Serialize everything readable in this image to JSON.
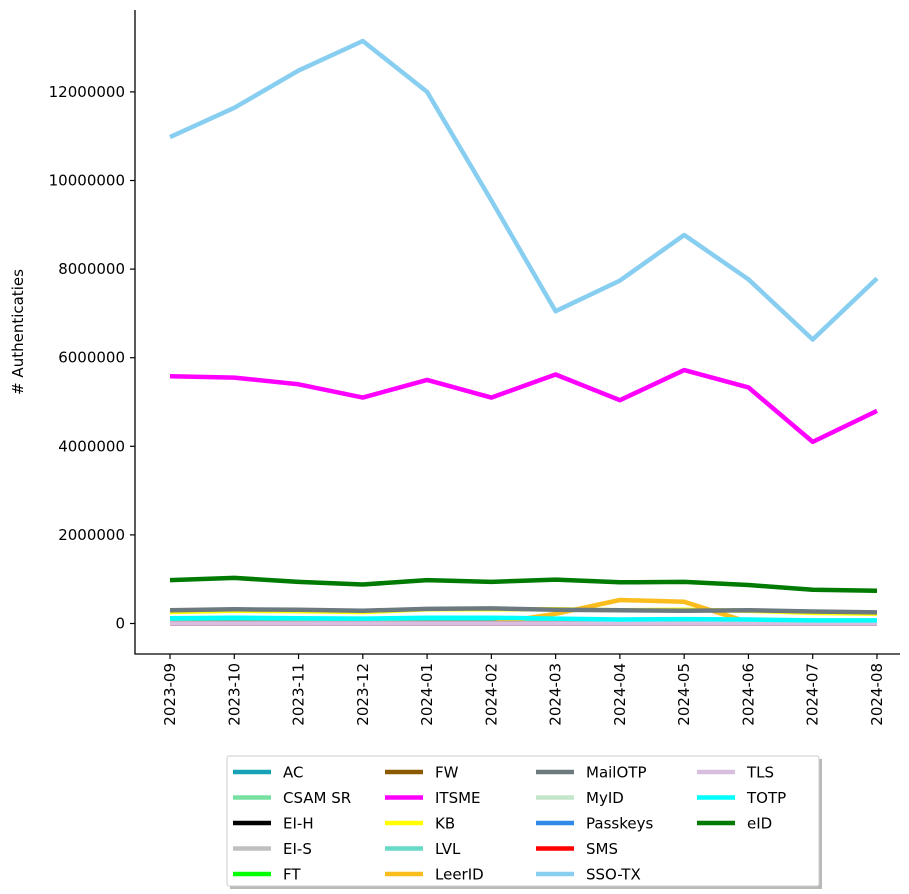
{
  "chart_data": {
    "type": "line",
    "title": "",
    "xlabel": "",
    "ylabel": "# Authenticaties",
    "ylim": [
      -650000,
      13900000
    ],
    "yticks": [
      0,
      2000000,
      4000000,
      6000000,
      8000000,
      10000000,
      12000000
    ],
    "ytick_labels": [
      "0",
      "2000000",
      "4000000",
      "6000000",
      "8000000",
      "10000000",
      "12000000"
    ],
    "categories": [
      "2023-09",
      "2023-10",
      "2023-11",
      "2023-12",
      "2024-01",
      "2024-02",
      "2024-03",
      "2024-04",
      "2024-05",
      "2024-06",
      "2024-07",
      "2024-08"
    ],
    "grid": false,
    "legend_position": "bottom",
    "series": [
      {
        "name": "AC",
        "color": "#17a2b8",
        "values": [
          30000,
          30000,
          30000,
          30000,
          30000,
          30000,
          30000,
          30000,
          30000,
          30000,
          30000,
          30000
        ]
      },
      {
        "name": "CSAM SR",
        "color": "#77e0a0",
        "values": [
          20000,
          20000,
          20000,
          20000,
          20000,
          20000,
          20000,
          20000,
          20000,
          20000,
          20000,
          20000
        ]
      },
      {
        "name": "EI-H",
        "color": "#000000",
        "values": [
          5000,
          5000,
          5000,
          5000,
          5000,
          5000,
          5000,
          5000,
          5000,
          5000,
          5000,
          5000
        ]
      },
      {
        "name": "EI-S",
        "color": "#c0c0c0",
        "values": [
          3000,
          3000,
          3000,
          3000,
          3000,
          3000,
          3000,
          3000,
          3000,
          3000,
          3000,
          3000
        ]
      },
      {
        "name": "FT",
        "color": "#00ff00",
        "values": [
          2000,
          2000,
          2000,
          2000,
          2000,
          2000,
          2000,
          2000,
          2000,
          2000,
          2000,
          2000
        ]
      },
      {
        "name": "FW",
        "color": "#8b5a00",
        "values": [
          1000,
          1000,
          1000,
          1000,
          1000,
          1000,
          1000,
          1000,
          1000,
          1000,
          1000,
          1000
        ]
      },
      {
        "name": "ITSME",
        "color": "#ff00ff",
        "values": [
          5580000,
          5550000,
          5400000,
          5100000,
          5500000,
          5100000,
          5620000,
          5040000,
          5720000,
          5330000,
          4100000,
          4800000
        ]
      },
      {
        "name": "KB",
        "color": "#ffff00",
        "values": [
          260000,
          290000,
          280000,
          260000,
          320000,
          320000,
          320000,
          300000,
          310000,
          290000,
          240000,
          220000
        ]
      },
      {
        "name": "LVL",
        "color": "#66d9c7",
        "values": [
          10000,
          10000,
          10000,
          10000,
          10000,
          10000,
          10000,
          10000,
          10000,
          10000,
          10000,
          10000
        ]
      },
      {
        "name": "LeerID",
        "color": "#fbbc1e",
        "values": [
          0,
          0,
          0,
          0,
          0,
          0,
          220000,
          530000,
          490000,
          30000,
          0,
          0
        ]
      },
      {
        "name": "MailOTP",
        "color": "#6c7a80",
        "values": [
          300000,
          320000,
          310000,
          290000,
          330000,
          340000,
          310000,
          300000,
          290000,
          300000,
          270000,
          250000
        ]
      },
      {
        "name": "MyID",
        "color": "#c3e6cb",
        "values": [
          0,
          0,
          0,
          0,
          0,
          0,
          0,
          0,
          0,
          0,
          0,
          0
        ]
      },
      {
        "name": "Passkeys",
        "color": "#2e8ae6",
        "values": [
          0,
          0,
          0,
          0,
          0,
          0,
          0,
          0,
          0,
          0,
          0,
          0
        ]
      },
      {
        "name": "SMS",
        "color": "#ff0000",
        "values": [
          0,
          0,
          0,
          0,
          0,
          0,
          0,
          0,
          0,
          0,
          0,
          0
        ]
      },
      {
        "name": "SSO-TX",
        "color": "#87cef0",
        "values": [
          10980000,
          11640000,
          12480000,
          13150000,
          12000000,
          9550000,
          7050000,
          7740000,
          8770000,
          7770000,
          6410000,
          7790000
        ]
      },
      {
        "name": "TLS",
        "color": "#d8bfe0",
        "values": [
          0,
          0,
          0,
          0,
          0,
          0,
          0,
          0,
          0,
          0,
          0,
          0
        ]
      },
      {
        "name": "TOTP",
        "color": "#00ffff",
        "values": [
          120000,
          130000,
          120000,
          110000,
          130000,
          130000,
          110000,
          90000,
          100000,
          90000,
          70000,
          70000
        ]
      },
      {
        "name": "eID",
        "color": "#007a00",
        "values": [
          980000,
          1030000,
          940000,
          880000,
          980000,
          940000,
          990000,
          930000,
          940000,
          870000,
          760000,
          740000
        ]
      }
    ]
  }
}
